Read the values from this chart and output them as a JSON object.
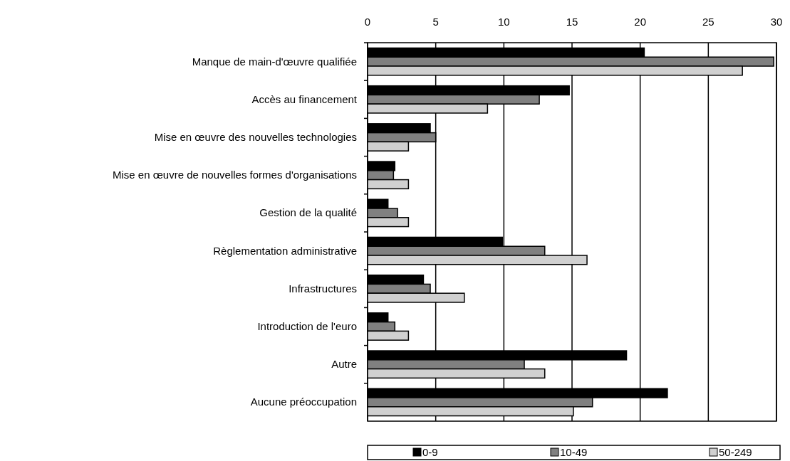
{
  "chart_data": {
    "type": "bar",
    "orientation": "horizontal",
    "categories": [
      "Manque de main-d'œuvre qualifiée",
      "Accès au financement",
      "Mise en œuvre des nouvelles technologies",
      "Mise en œuvre de nouvelles formes d'organisations",
      "Gestion de la qualité",
      "Règlementation administrative",
      "Infrastructures",
      "Introduction de l'euro",
      "Autre",
      "Aucune préoccupation"
    ],
    "series": [
      {
        "name": "0-9",
        "color": "#000000",
        "values": [
          20.3,
          14.8,
          4.6,
          2.0,
          1.5,
          9.9,
          4.1,
          1.5,
          19.0,
          22.0
        ]
      },
      {
        "name": "10-49",
        "color": "#808080",
        "values": [
          29.8,
          12.6,
          5.0,
          1.9,
          2.2,
          13.0,
          4.6,
          2.0,
          11.5,
          16.5
        ]
      },
      {
        "name": "50-249",
        "color": "#d0d0d0",
        "values": [
          27.5,
          8.8,
          3.0,
          3.0,
          3.0,
          16.1,
          7.1,
          3.0,
          13.0,
          15.1
        ]
      }
    ],
    "xlim": [
      0,
      30
    ],
    "xticks": [
      0,
      5,
      10,
      15,
      20,
      25,
      30
    ],
    "grid": "x",
    "legend": "bottom"
  }
}
